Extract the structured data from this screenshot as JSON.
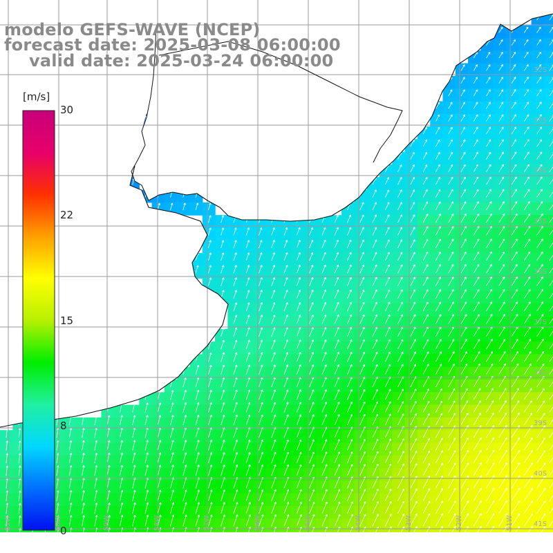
{
  "header": {
    "model": "modelo GEFS-WAVE (NCEP)",
    "forecast": "forecast date: 2025-03-08 06:00:00",
    "valid": "valid date: 2025-03-24 06:00:00"
  },
  "colorbar": {
    "unit": "[m/s]",
    "min": 0,
    "max": 30,
    "ticks": [
      {
        "value": 30,
        "label": "30"
      },
      {
        "value": 22,
        "label": "22"
      },
      {
        "value": 15,
        "label": "15"
      },
      {
        "value": 8,
        "label": "8"
      },
      {
        "value": 0,
        "label": "0"
      }
    ],
    "colors": [
      "#0010f0",
      "#0070ff",
      "#00d8ff",
      "#20f0a0",
      "#00ee00",
      "#b8f000",
      "#ffff00",
      "#ffa000",
      "#ff3000",
      "#e8006a",
      "#c8007a"
    ]
  },
  "map": {
    "lat_labels": [
      "32S",
      "33S",
      "34S",
      "35S",
      "36S",
      "37S",
      "38S",
      "39S",
      "40S",
      "41S"
    ],
    "lon_labels": [
      "61W",
      "60W",
      "59W",
      "58W",
      "57W",
      "56W",
      "55W",
      "54W",
      "53W",
      "52W",
      "51W"
    ],
    "land_color": "#ffffff",
    "grid_color": "#9a9a9a"
  }
}
